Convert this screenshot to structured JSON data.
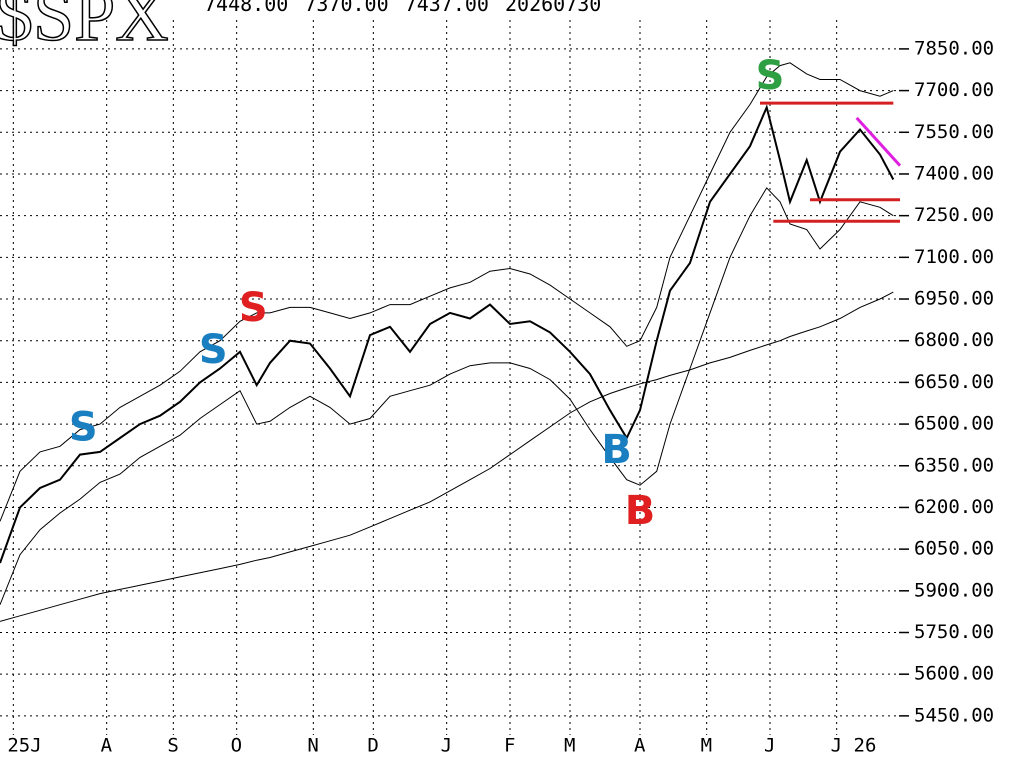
{
  "chart_data": {
    "type": "line",
    "title": "$SPX",
    "subtitle": "7448.00 7370.00 7437.00 20260730",
    "x": [
      0,
      6,
      12,
      18,
      24,
      30,
      36,
      42,
      48,
      54,
      60,
      66,
      72,
      77,
      81,
      87,
      93,
      99,
      105,
      111,
      117,
      123,
      129,
      135,
      141,
      147,
      153,
      159,
      165,
      171,
      177,
      183,
      188,
      192,
      197,
      201,
      207,
      213,
      219,
      225,
      230,
      234,
      237,
      242,
      246,
      252,
      258,
      264,
      268
    ],
    "series": [
      {
        "color": "#000000",
        "values": [
          6000,
          6200,
          6270,
          6300,
          6390,
          6400,
          6450,
          6500,
          6530,
          6580,
          6650,
          6700,
          6760,
          6640,
          6720,
          6800,
          6790,
          6700,
          6600,
          6820,
          6850,
          6760,
          6860,
          6900,
          6880,
          6930,
          6860,
          6870,
          6830,
          6760,
          6680,
          6550,
          6450,
          6550,
          6800,
          6980,
          7080,
          7300,
          7400,
          7500,
          7640,
          7450,
          7300,
          7450,
          7300,
          7480,
          7560,
          7470,
          7380
        ]
      },
      {
        "color": "#000000",
        "values": [
          6150,
          6330,
          6400,
          6420,
          6480,
          6500,
          6560,
          6600,
          6640,
          6690,
          6760,
          6800,
          6870,
          6900,
          6900,
          6920,
          6920,
          6900,
          6880,
          6900,
          6930,
          6930,
          6960,
          6990,
          7010,
          7050,
          7060,
          7040,
          7000,
          6950,
          6900,
          6850,
          6780,
          6800,
          6920,
          7100,
          7250,
          7400,
          7550,
          7650,
          7750,
          7790,
          7800,
          7760,
          7740,
          7740,
          7700,
          7680,
          7700
        ]
      },
      {
        "color": "#000000",
        "values": [
          5850,
          6030,
          6120,
          6180,
          6230,
          6290,
          6320,
          6380,
          6420,
          6460,
          6520,
          6570,
          6620,
          6500,
          6510,
          6560,
          6600,
          6560,
          6500,
          6520,
          6600,
          6620,
          6640,
          6680,
          6710,
          6720,
          6720,
          6700,
          6660,
          6590,
          6480,
          6380,
          6300,
          6280,
          6330,
          6500,
          6700,
          6900,
          7100,
          7250,
          7350,
          7300,
          7220,
          7200,
          7130,
          7200,
          7300,
          7280,
          7250
        ]
      },
      {
        "color": "#000000",
        "values": [
          5790,
          5810,
          5830,
          5850,
          5870,
          5890,
          5905,
          5920,
          5935,
          5950,
          5965,
          5980,
          5995,
          6010,
          6020,
          6040,
          6060,
          6080,
          6100,
          6130,
          6160,
          6190,
          6220,
          6260,
          6300,
          6340,
          6390,
          6440,
          6490,
          6540,
          6580,
          6610,
          6630,
          6645,
          6660,
          6675,
          6695,
          6720,
          6740,
          6765,
          6785,
          6800,
          6815,
          6835,
          6850,
          6880,
          6920,
          6950,
          6975
        ]
      }
    ],
    "xlim": [
      0,
      270
    ],
    "xticks": [
      {
        "value": 4,
        "label": "25J"
      },
      {
        "value": 32,
        "label": "A"
      },
      {
        "value": 52,
        "label": "S"
      },
      {
        "value": 71,
        "label": "O"
      },
      {
        "value": 94,
        "label": "N"
      },
      {
        "value": 112,
        "label": "D"
      },
      {
        "value": 134,
        "label": "J"
      },
      {
        "value": 153,
        "label": "F"
      },
      {
        "value": 171,
        "label": "M"
      },
      {
        "value": 192,
        "label": "A"
      },
      {
        "value": 212,
        "label": "M"
      },
      {
        "value": 231,
        "label": "J"
      },
      {
        "value": 251,
        "label": "J 26"
      }
    ],
    "ylim": [
      5302,
      8026
    ],
    "yticks": [
      {
        "value": 7850,
        "label": "7850.00"
      },
      {
        "value": 7700,
        "label": "7700.00"
      },
      {
        "value": 7550,
        "label": "7550.00"
      },
      {
        "value": 7400,
        "label": "7400.00"
      },
      {
        "value": 7250,
        "label": "7250.00"
      },
      {
        "value": 7100,
        "label": "7100.00"
      },
      {
        "value": 6950,
        "label": "6950.00"
      },
      {
        "value": 6800,
        "label": "6800.00"
      },
      {
        "value": 6650,
        "label": "6650.00"
      },
      {
        "value": 6500,
        "label": "6500.00"
      },
      {
        "value": 6350,
        "label": "6350.00"
      },
      {
        "value": 6200,
        "label": "6200.00"
      },
      {
        "value": 6050,
        "label": "6050.00"
      },
      {
        "value": 5900,
        "label": "5900.00"
      },
      {
        "value": 5750,
        "label": "5750.00"
      },
      {
        "value": 5600,
        "label": "5600.00"
      },
      {
        "value": 5450,
        "label": "5450.00"
      }
    ],
    "grid": true,
    "annotations": [
      {
        "text": "S",
        "color": "#1a7fc1",
        "x": 25,
        "y": 6480
      },
      {
        "text": "S",
        "color": "#1a7fc1",
        "x": 64,
        "y": 6760
      },
      {
        "text": "S",
        "color": "#e02020",
        "x": 76,
        "y": 6910
      },
      {
        "text": "B",
        "color": "#1a7fc1",
        "x": 185,
        "y": 6400
      },
      {
        "text": "B",
        "color": "#e02020",
        "x": 192,
        "y": 6180
      },
      {
        "text": "S",
        "color": "#2ea043",
        "x": 231,
        "y": 7745
      }
    ],
    "lines": [
      {
        "color": "#d42020",
        "x": [
          228,
          268
        ],
        "y": [
          7655,
          7655
        ]
      },
      {
        "color": "#d42020",
        "x": [
          232,
          270
        ],
        "y": [
          7230,
          7230
        ]
      },
      {
        "color": "#d42020",
        "x": [
          243,
          270
        ],
        "y": [
          7307,
          7307
        ]
      },
      {
        "color": "#e020e0",
        "x": [
          257,
          270
        ],
        "y": [
          7602,
          7430
        ]
      }
    ]
  }
}
